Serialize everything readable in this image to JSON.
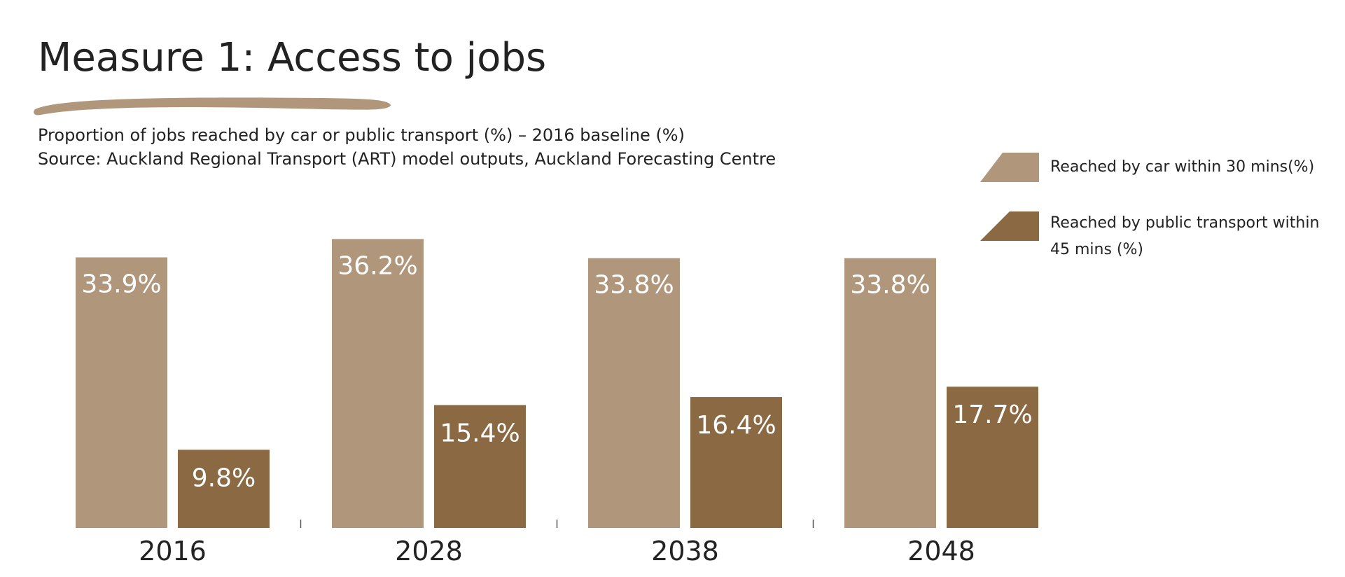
{
  "title": "Measure 1: Access to jobs",
  "subtitle_lines": [
    "Proportion of jobs reached by car or public transport (%) – 2016 baseline (%)",
    "Source: Auckland Regional Transport (ART) model outputs, Auckland Forecasting Centre"
  ],
  "colors": {
    "car": "#b0977b",
    "pt": "#8b6a43",
    "underline": "#b0977b"
  },
  "legend": [
    {
      "label_lines": [
        "Reached by car within 30 mins(%)"
      ]
    },
    {
      "label_lines": [
        "Reached by public transport within",
        "45 mins (%)"
      ]
    }
  ],
  "chart_data": {
    "type": "bar",
    "categories": [
      "2016",
      "2028",
      "2038",
      "2048"
    ],
    "series": [
      {
        "name": "Reached by car within 30 mins(%)",
        "values": [
          33.9,
          36.2,
          33.8,
          33.8
        ],
        "labels": [
          "33.9%",
          "36.2%",
          "33.8%",
          "33.8%"
        ]
      },
      {
        "name": "Reached by public transport within 45 mins (%)",
        "values": [
          9.8,
          15.4,
          16.4,
          17.7
        ],
        "labels": [
          "9.8%",
          "15.4%",
          "16.4%",
          "17.7%"
        ]
      }
    ],
    "xlabel": "",
    "ylabel": "",
    "grid": false,
    "legend_position": "top-right"
  }
}
